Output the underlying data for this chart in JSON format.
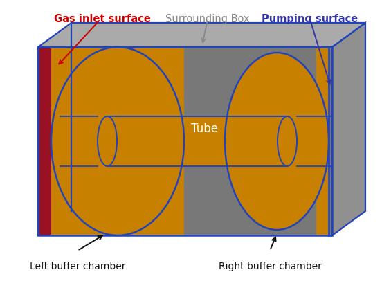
{
  "background_color": "#ffffff",
  "labels": {
    "gas_inlet": "Gas inlet surface",
    "surrounding_box": "Surrounding Box",
    "pumping_surface": "Pumping surface",
    "tube": "Tube",
    "left_buffer": "Left buffer chamber",
    "right_buffer": "Right buffer chamber"
  },
  "label_colors": {
    "gas_inlet": "#cc0000",
    "surrounding_box": "#888888",
    "pumping_surface": "#3333aa",
    "tube": "#ffffff",
    "left_buffer": "#111111",
    "right_buffer": "#111111"
  },
  "mesh_orange": "#c88000",
  "box_gray_front": "#787878",
  "box_gray_top": "#aaaaaa",
  "box_gray_right": "#909090",
  "blue_c": "#2244bb",
  "inlet_red": "#991122",
  "pumping_blue": "#1133bb"
}
